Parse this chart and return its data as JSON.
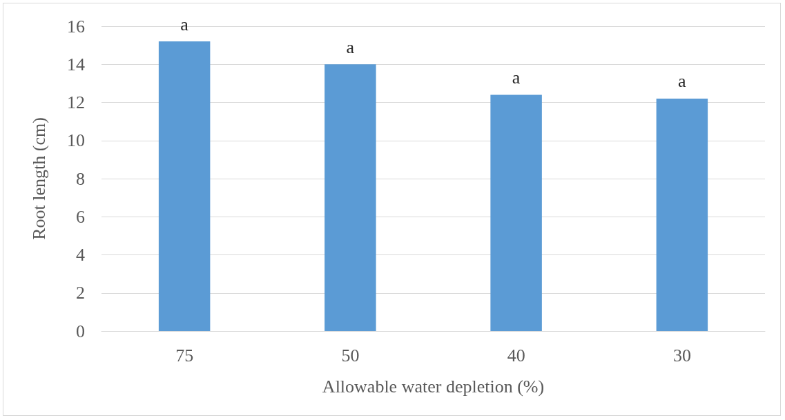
{
  "chart_data": {
    "type": "bar",
    "xlabel": "Allowable water depletion (%)",
    "ylabel": "Root length (cm)",
    "categories": [
      "75",
      "50",
      "40",
      "30"
    ],
    "values": [
      15.2,
      14.0,
      12.4,
      12.2
    ],
    "color": "#5b9bd5",
    "ylim": [
      0,
      16
    ],
    "yticks": [
      0,
      2,
      4,
      6,
      8,
      10,
      12,
      14,
      16
    ],
    "grid": "y",
    "annotations": [
      {
        "text": "a",
        "x": "75",
        "y": 15.2
      },
      {
        "text": "a",
        "x": "50",
        "y": 14.0
      },
      {
        "text": "a",
        "x": "40",
        "y": 12.4
      },
      {
        "text": "a",
        "x": "30",
        "y": 12.2
      }
    ]
  }
}
